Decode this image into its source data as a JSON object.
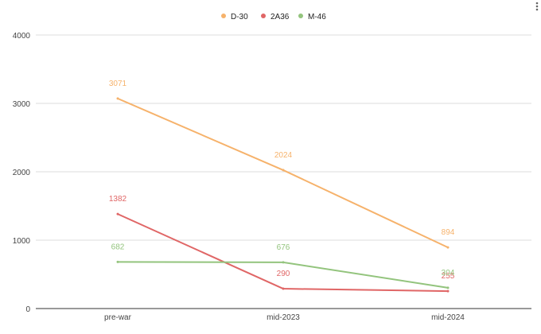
{
  "chart_data": {
    "type": "line",
    "title": "",
    "xlabel": "",
    "ylabel": "",
    "categories": [
      "pre-war",
      "mid-2023",
      "mid-2024"
    ],
    "ylim": [
      0,
      4000
    ],
    "yticks": [
      0,
      1000,
      2000,
      3000,
      4000
    ],
    "grid": true,
    "legend_position": "top",
    "series": [
      {
        "name": "D-30",
        "color": "#f6b26b",
        "values": [
          3071,
          2024,
          894
        ]
      },
      {
        "name": "2A36",
        "color": "#e06666",
        "values": [
          1382,
          290,
          255
        ]
      },
      {
        "name": "M-46",
        "color": "#93c47d",
        "values": [
          682,
          676,
          304
        ]
      }
    ]
  },
  "menu": {
    "icon": "more-vert-icon"
  }
}
